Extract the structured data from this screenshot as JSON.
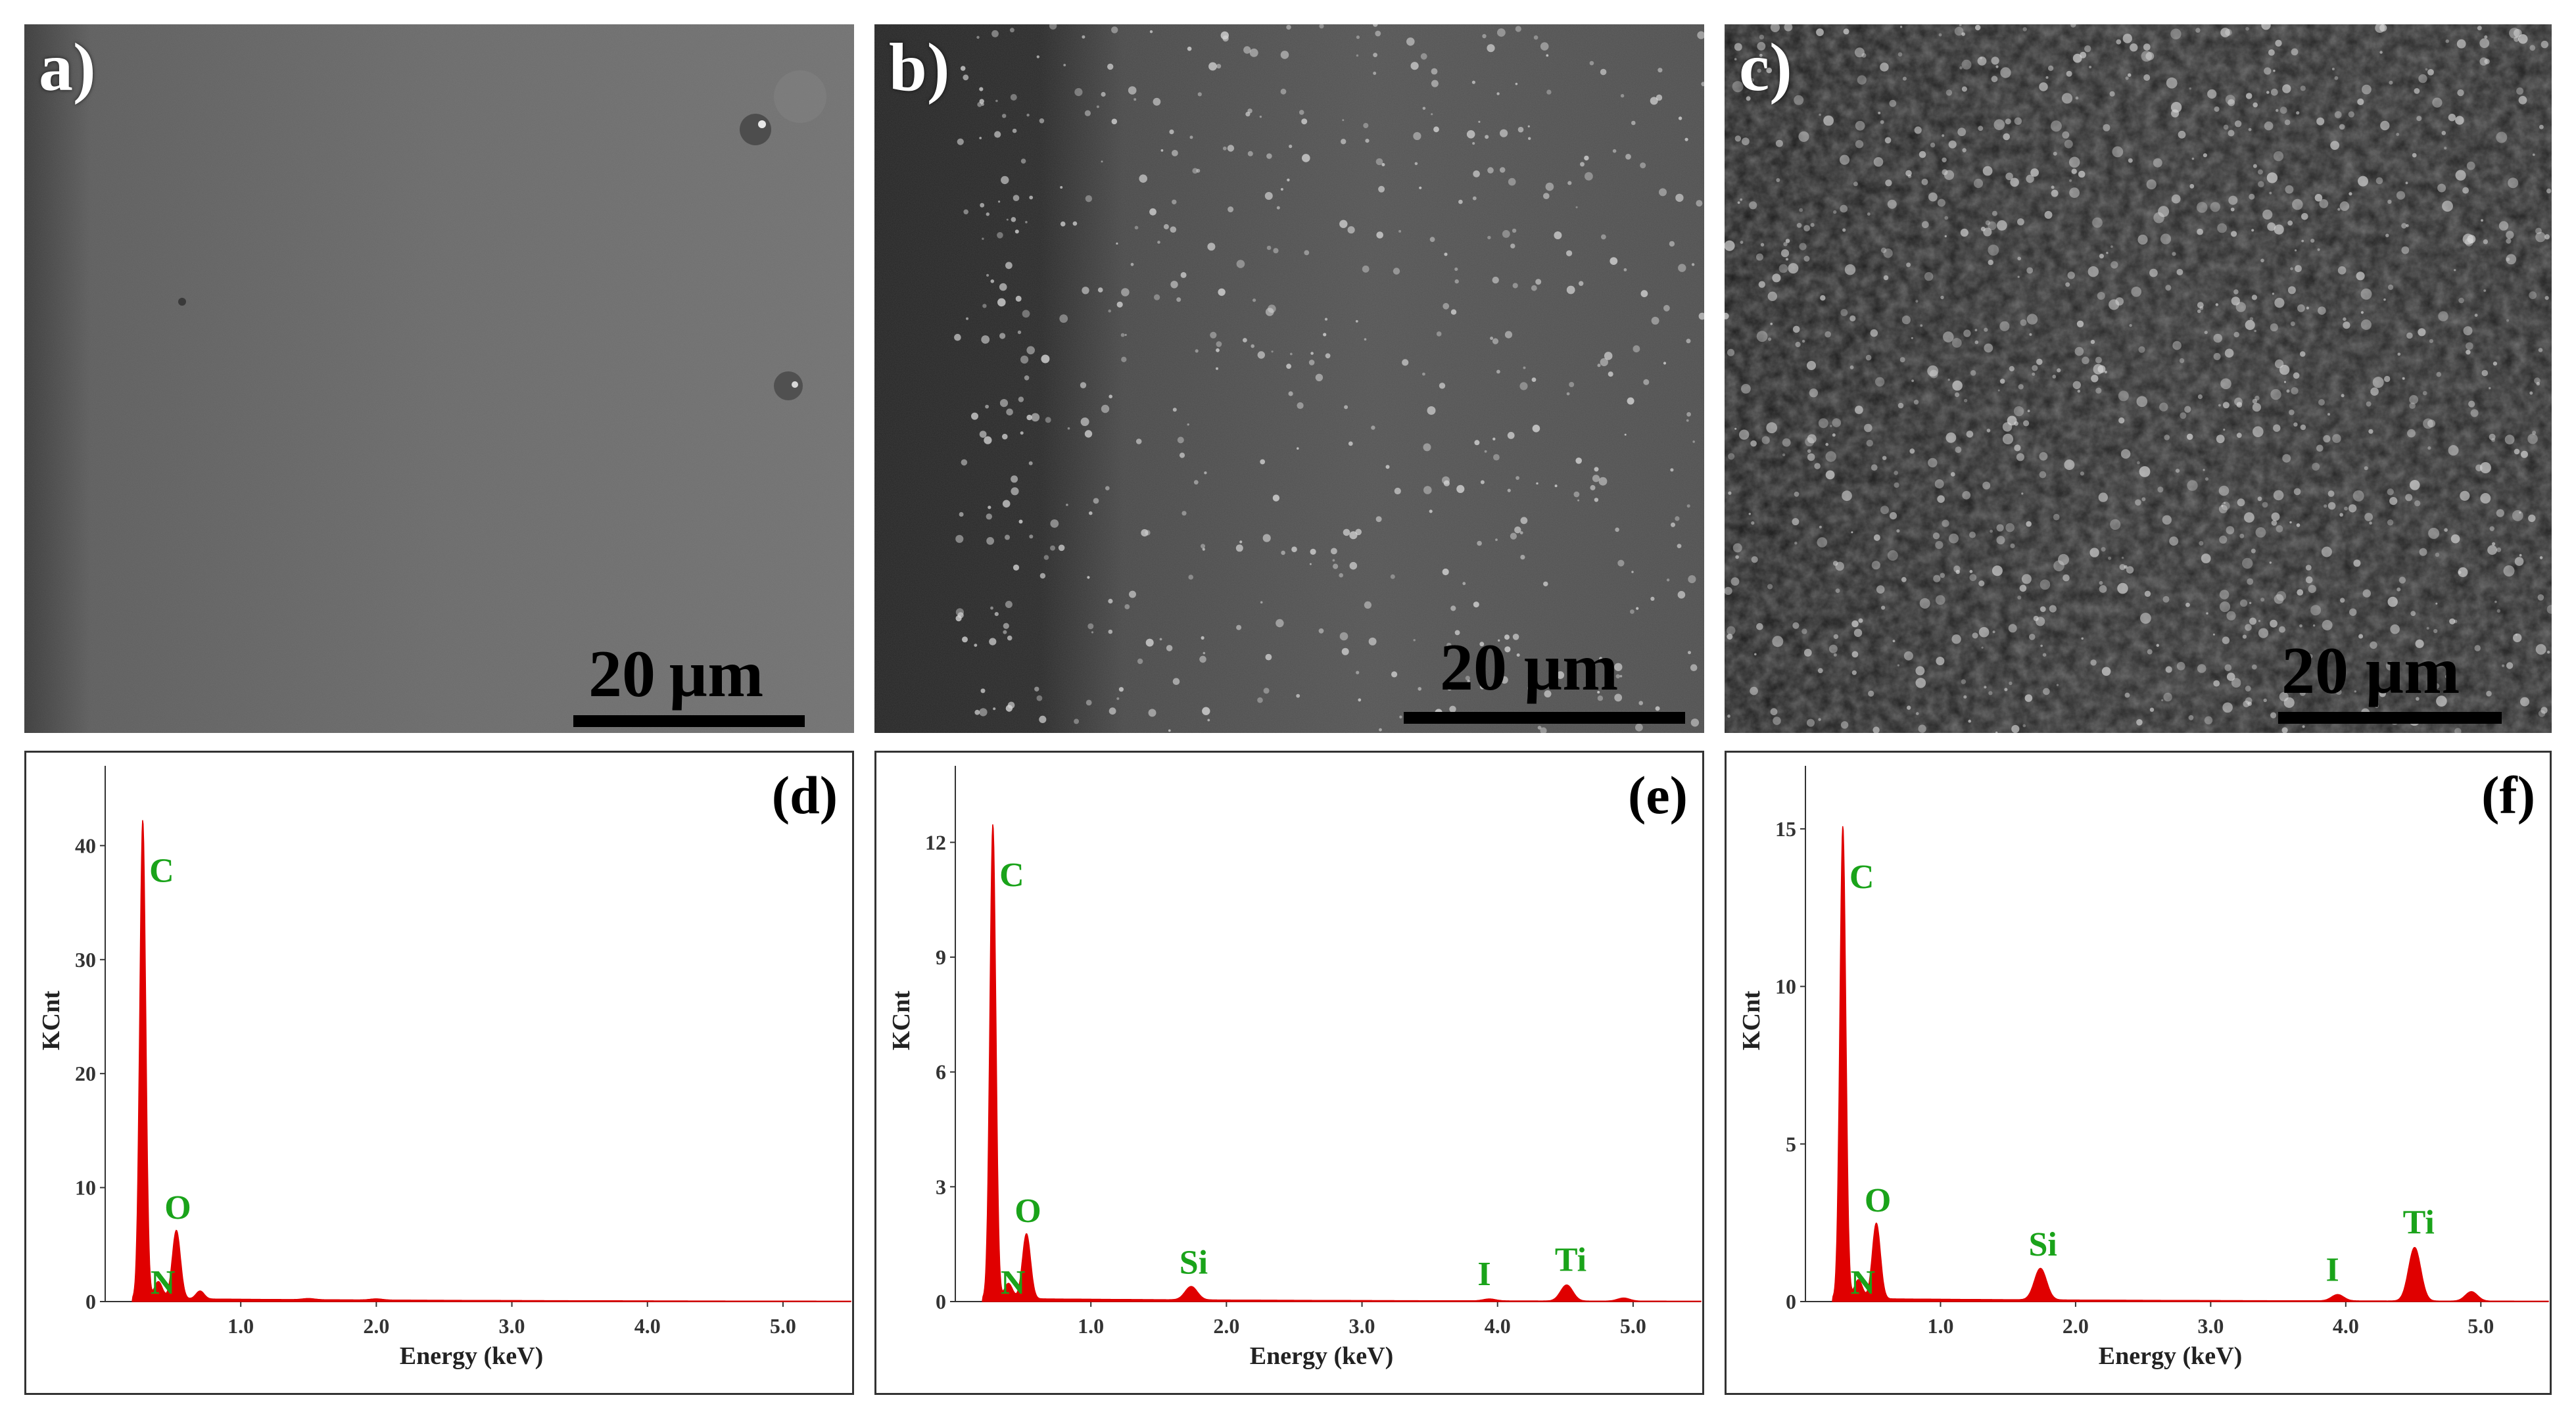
{
  "sem_panels": [
    {
      "label": "a)",
      "scale_text": "20 µm"
    },
    {
      "label": "b)",
      "scale_text": "20 µm"
    },
    {
      "label": "c)",
      "scale_text": "20 µm"
    }
  ],
  "colors": {
    "spectrum": "#e00000",
    "element_label": "#1aa31a"
  },
  "chart_data": [
    {
      "type": "area",
      "panel_label": "(d)",
      "xlabel": "Energy (keV)",
      "ylabel": "KCnt",
      "xlim": [
        0.0,
        5.5
      ],
      "ylim": [
        0,
        47
      ],
      "xticks": [
        1.0,
        2.0,
        3.0,
        4.0,
        5.0
      ],
      "xtick_labels": [
        "1.0",
        "2.0",
        "3.0",
        "4.0",
        "5.0"
      ],
      "yticks": [
        0,
        10,
        20,
        30,
        40
      ],
      "ytick_labels": [
        "0",
        "10",
        "20",
        "30",
        "40"
      ],
      "series": [
        {
          "x": [
            0.277,
            0.392,
            0.525,
            0.7,
            1.5,
            2.0
          ],
          "y": [
            42,
            1.5,
            6,
            0.7,
            0.1,
            0.1
          ]
        }
      ],
      "peaks": [
        {
          "element": "C",
          "energy": 0.277,
          "height": 42
        },
        {
          "element": "N",
          "energy": 0.392,
          "height": 1.5
        },
        {
          "element": "O",
          "energy": 0.525,
          "height": 6
        }
      ]
    },
    {
      "type": "area",
      "panel_label": "(e)",
      "xlabel": "Energy (keV)",
      "ylabel": "KCnt",
      "xlim": [
        0.0,
        5.5
      ],
      "ylim": [
        0,
        14
      ],
      "xticks": [
        1.0,
        2.0,
        3.0,
        4.0,
        5.0
      ],
      "xtick_labels": [
        "1.0",
        "2.0",
        "3.0",
        "4.0",
        "5.0"
      ],
      "yticks": [
        0,
        3,
        6,
        9,
        12
      ],
      "ytick_labels": [
        "0",
        "3",
        "6",
        "9",
        "12"
      ],
      "series": [
        {
          "x": [
            0.277,
            0.392,
            0.525,
            1.74,
            3.94,
            4.51,
            4.93
          ],
          "y": [
            12.4,
            0.4,
            1.7,
            0.35,
            0.05,
            0.42,
            0.08
          ]
        }
      ],
      "peaks": [
        {
          "element": "C",
          "energy": 0.277,
          "height": 12.4
        },
        {
          "element": "N",
          "energy": 0.392,
          "height": 0.4
        },
        {
          "element": "O",
          "energy": 0.525,
          "height": 1.7
        },
        {
          "element": "Si",
          "energy": 1.74,
          "height": 0.35
        },
        {
          "element": "I",
          "energy": 3.94,
          "height": 0.05
        },
        {
          "element": "Ti",
          "energy": 4.51,
          "height": 0.42
        }
      ]
    },
    {
      "type": "area",
      "panel_label": "(f)",
      "xlabel": "Energy (keV)",
      "ylabel": "KCnt",
      "xlim": [
        0.0,
        5.5
      ],
      "ylim": [
        0,
        17
      ],
      "xticks": [
        1.0,
        2.0,
        3.0,
        4.0,
        5.0
      ],
      "xtick_labels": [
        "1.0",
        "2.0",
        "3.0",
        "4.0",
        "5.0"
      ],
      "yticks": [
        0,
        5,
        10,
        15
      ],
      "ytick_labels": [
        "0",
        "5",
        "10",
        "15"
      ],
      "series": [
        {
          "x": [
            0.277,
            0.392,
            0.525,
            1.74,
            3.94,
            4.51,
            4.93
          ],
          "y": [
            15,
            0.6,
            2.4,
            1.0,
            0.2,
            1.7,
            0.3
          ]
        }
      ],
      "peaks": [
        {
          "element": "C",
          "energy": 0.277,
          "height": 15
        },
        {
          "element": "N",
          "energy": 0.392,
          "height": 0.6
        },
        {
          "element": "O",
          "energy": 0.525,
          "height": 2.4
        },
        {
          "element": "Si",
          "energy": 1.74,
          "height": 1.0
        },
        {
          "element": "I",
          "energy": 3.94,
          "height": 0.2
        },
        {
          "element": "Ti",
          "energy": 4.51,
          "height": 1.7
        }
      ]
    }
  ]
}
